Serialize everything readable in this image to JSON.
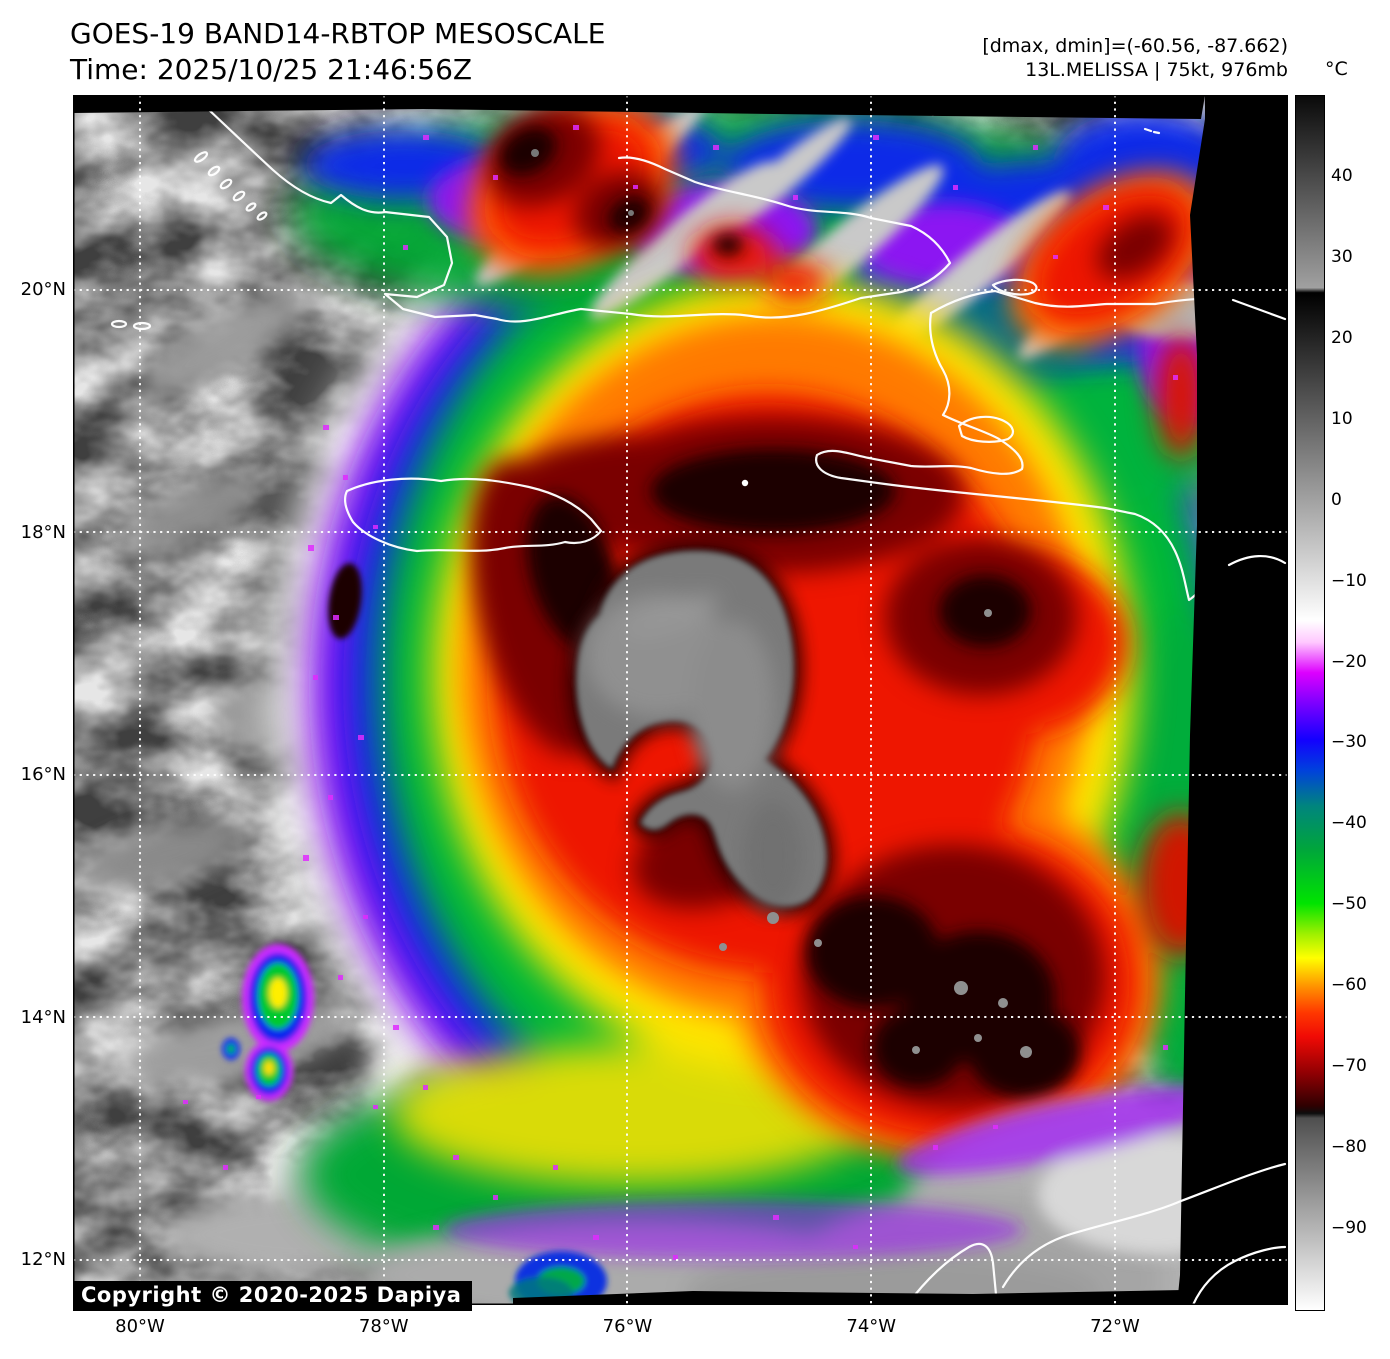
{
  "header": {
    "title": "GOES-19 BAND14-RBTOP MESOSCALE",
    "time_line": "Time: 2025/10/25 21:46:56Z",
    "range_line": "[dmax, dmin]=(-60.56, -87.662)",
    "storm_line": "13L.MELISSA | 75kt, 976mb"
  },
  "colorbar": {
    "unit_label": "°C",
    "top_value": 50,
    "bottom_value": -100,
    "ticks": [
      {
        "value": 40,
        "label": "40"
      },
      {
        "value": 30,
        "label": "30"
      },
      {
        "value": 20,
        "label": "20"
      },
      {
        "value": 10,
        "label": "10"
      },
      {
        "value": 0,
        "label": "0"
      },
      {
        "value": -10,
        "label": "−10"
      },
      {
        "value": -20,
        "label": "−20"
      },
      {
        "value": -30,
        "label": "−30"
      },
      {
        "value": -40,
        "label": "−40"
      },
      {
        "value": -50,
        "label": "−50"
      },
      {
        "value": -60,
        "label": "−60"
      },
      {
        "value": -70,
        "label": "−70"
      },
      {
        "value": -80,
        "label": "−80"
      },
      {
        "value": -90,
        "label": "−90"
      }
    ],
    "gradient_stops": [
      {
        "p": 0,
        "c": "#0a0a0a"
      },
      {
        "p": 15.8,
        "c": "#a0a0a0"
      },
      {
        "p": 16.2,
        "c": "#000000"
      },
      {
        "p": 43.2,
        "c": "#ffffff"
      },
      {
        "p": 45.0,
        "c": "#ffc8ff"
      },
      {
        "p": 47.5,
        "c": "#dd00ff"
      },
      {
        "p": 50.0,
        "c": "#7d00ff"
      },
      {
        "p": 53.0,
        "c": "#1400ff"
      },
      {
        "p": 55.5,
        "c": "#0040dd"
      },
      {
        "p": 58.5,
        "c": "#00857d"
      },
      {
        "p": 62.0,
        "c": "#00a53c"
      },
      {
        "p": 66.5,
        "c": "#00e400"
      },
      {
        "p": 69.0,
        "c": "#9cf000"
      },
      {
        "p": 71.0,
        "c": "#ffff00"
      },
      {
        "p": 73.5,
        "c": "#ff8c00"
      },
      {
        "p": 75.5,
        "c": "#ff3800"
      },
      {
        "p": 77.5,
        "c": "#f00a05"
      },
      {
        "p": 80.5,
        "c": "#900003"
      },
      {
        "p": 83.2,
        "c": "#2e0001"
      },
      {
        "p": 83.8,
        "c": "#0d0d0d"
      },
      {
        "p": 84.2,
        "c": "#4f4f4f"
      },
      {
        "p": 100,
        "c": "#ffffff"
      }
    ]
  },
  "axes": {
    "lat_labels": [
      "20°N",
      "18°N",
      "16°N",
      "14°N",
      "12°N"
    ],
    "lon_labels": [
      "80°W",
      "78°W",
      "76°W",
      "74°W",
      "72°W"
    ]
  },
  "footer": {
    "copyright": "Copyright © 2020-2025 Dapiya"
  },
  "map_colors": {
    "warm_ocean_gray": "#3f3f3f",
    "cold_core_red": "#ee1505",
    "overshoot_gray": "#8f8f8f",
    "fringe_magenta": "#e02bff",
    "land_outline": "#ffffff",
    "no_data_black": "#000000"
  }
}
